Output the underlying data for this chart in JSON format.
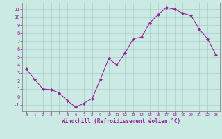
{
  "hours": [
    0,
    1,
    2,
    3,
    4,
    5,
    6,
    7,
    8,
    9,
    10,
    11,
    12,
    13,
    14,
    15,
    16,
    17,
    18,
    19,
    20,
    21,
    22,
    23
  ],
  "values": [
    3.5,
    2.2,
    1.0,
    0.9,
    0.5,
    -0.5,
    -1.3,
    -0.8,
    -0.2,
    2.2,
    4.8,
    4.0,
    5.5,
    7.3,
    7.5,
    9.3,
    10.3,
    11.2,
    11.0,
    10.5,
    10.2,
    8.5,
    7.3,
    5.3
  ],
  "line_color": "#992299",
  "marker": "D",
  "marker_size": 2,
  "bg_color": "#cceae4",
  "grid_color": "#aacccc",
  "xlabel": "Windchill (Refroidissement éolien,°C)",
  "xlabel_color": "#992299",
  "xlim": [
    -0.5,
    23.5
  ],
  "ylim": [
    -1.8,
    11.8
  ],
  "yticks": [
    -1,
    0,
    1,
    2,
    3,
    4,
    5,
    6,
    7,
    8,
    9,
    10,
    11
  ],
  "xticks": [
    0,
    1,
    2,
    3,
    4,
    5,
    6,
    7,
    8,
    9,
    10,
    11,
    12,
    13,
    14,
    15,
    16,
    17,
    18,
    19,
    20,
    21,
    22,
    23
  ]
}
